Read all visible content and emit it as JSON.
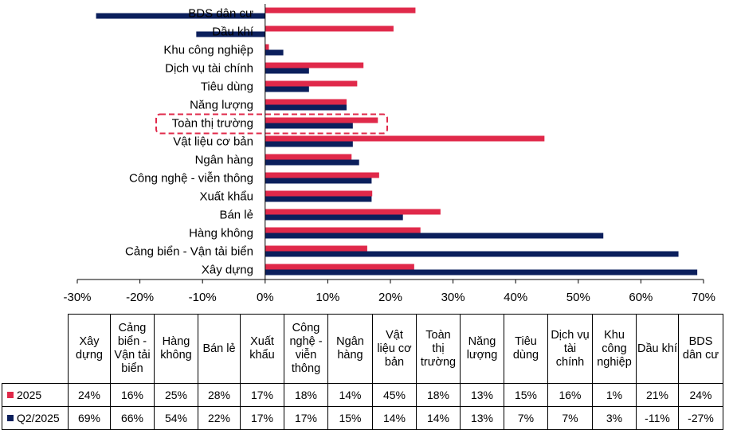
{
  "chart_data": {
    "type": "bar",
    "orientation": "horizontal",
    "categories": [
      "BDS dân cư",
      "Dầu khí",
      "Khu công nghiệp",
      "Dịch vụ tài chính",
      "Tiêu dùng",
      "Năng lượng",
      "Toàn thị trường",
      "Vật liệu cơ bản",
      "Ngân hàng",
      "Công nghệ - viễn thông",
      "Xuất khẩu",
      "Bán lẻ",
      "Hàng không",
      "Cảng biển - Vận tải biển",
      "Xây dựng"
    ],
    "series": [
      {
        "name": "2025",
        "color": "#e0294a",
        "values": [
          24,
          20.5,
          0.6,
          15.7,
          14.7,
          13,
          18,
          44.6,
          13.8,
          18.2,
          17.1,
          28,
          24.8,
          16.3,
          23.8
        ]
      },
      {
        "name": "Q2/2025",
        "color": "#0b1f5c",
        "values": [
          -27,
          -11,
          2.9,
          7,
          7,
          13,
          14,
          14,
          15,
          17,
          17,
          22,
          54,
          66,
          69
        ]
      }
    ],
    "xlim": [
      -30,
      70
    ],
    "xticks": [
      -30,
      -20,
      -10,
      0,
      10,
      20,
      30,
      40,
      50,
      60,
      70
    ],
    "tick_suffix": "%",
    "highlighted_category": "Toàn thị trường",
    "grid": false
  },
  "table": {
    "headers": [
      [
        "Xây",
        "dựng"
      ],
      [
        "Cảng",
        "biển -",
        "Vận tải",
        "biển"
      ],
      [
        "Hàng",
        "không"
      ],
      [
        "Bán lẻ"
      ],
      [
        "Xuất",
        "khẩu"
      ],
      [
        "Công",
        "nghệ -",
        "viễn",
        "thông"
      ],
      [
        "Ngân",
        "hàng"
      ],
      [
        "Vật",
        "liệu cơ",
        "bản"
      ],
      [
        "Toàn",
        "thị",
        "trường"
      ],
      [
        "Năng",
        "lượng"
      ],
      [
        "Tiêu",
        "dùng"
      ],
      [
        "Dịch vụ",
        "tài",
        "chính"
      ],
      [
        "Khu",
        "công",
        "nghiệp"
      ],
      [
        "Dầu khí"
      ],
      [
        "BDS",
        "dân cư"
      ]
    ],
    "rows": [
      {
        "label": "2025",
        "color": "#e0294a",
        "values": [
          "24%",
          "16%",
          "25%",
          "28%",
          "17%",
          "18%",
          "14%",
          "45%",
          "18%",
          "13%",
          "15%",
          "16%",
          "1%",
          "21%",
          "24%"
        ]
      },
      {
        "label": "Q2/2025",
        "color": "#0b1f5c",
        "values": [
          "69%",
          "66%",
          "54%",
          "22%",
          "17%",
          "17%",
          "15%",
          "14%",
          "14%",
          "13%",
          "7%",
          "7%",
          "3%",
          "-11%",
          "-27%"
        ]
      }
    ]
  }
}
